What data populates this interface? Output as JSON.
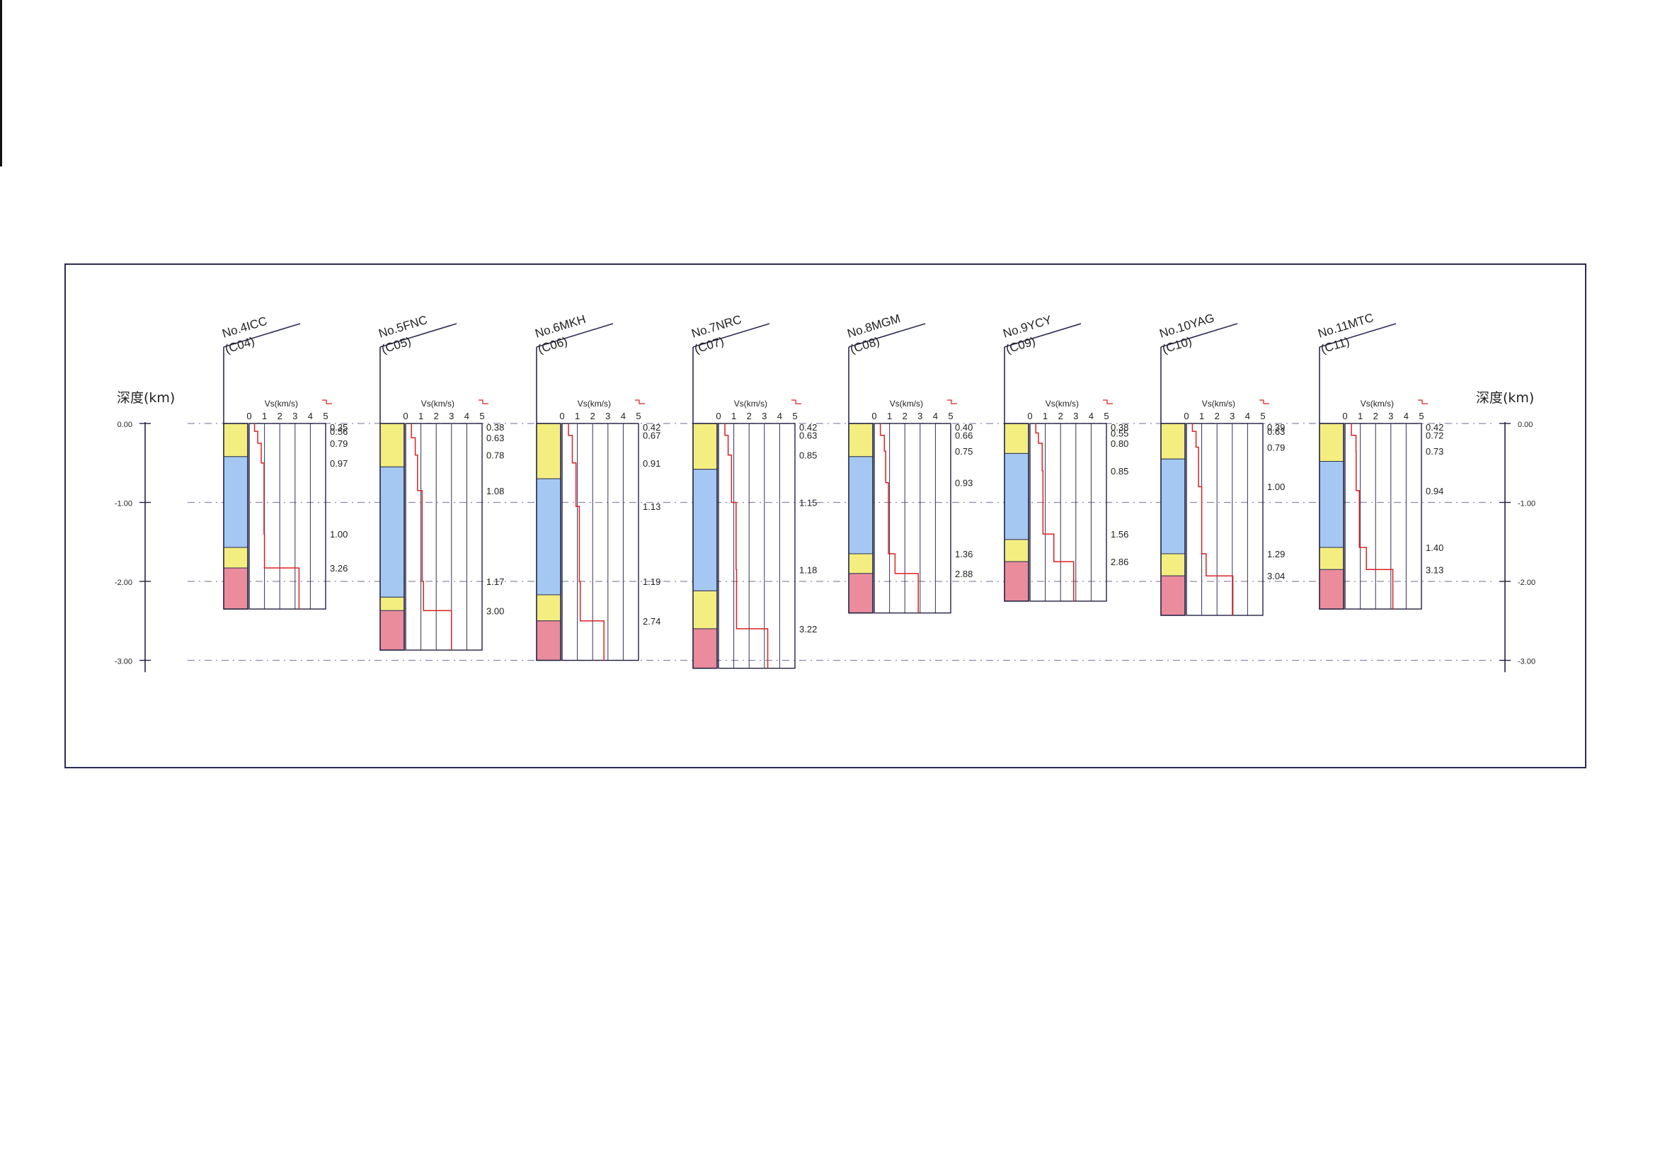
{
  "depth_axis": {
    "title": "深度(km)",
    "ticks": [
      {
        "value": 0,
        "label": "0.00"
      },
      {
        "value": -1,
        "label": "-1.00"
      },
      {
        "value": -2,
        "label": "-2.00"
      },
      {
        "value": -3,
        "label": "-3.00"
      }
    ]
  },
  "vs_axis": {
    "title": "Vs(km/s)",
    "ticks": [
      "0",
      "1",
      "2",
      "3",
      "4",
      "5"
    ],
    "max": 5
  },
  "colors": {
    "frame": "#2b2b55",
    "yellow": "#f4ee80",
    "blue": "#a4c8f2",
    "pink": "#ea8c9c",
    "vs_line": "#dd2222",
    "axis": "#222244",
    "ref_line": "#8a8aa8"
  },
  "boreholes": [
    {
      "name": "No.4ICC",
      "code": "(C04)",
      "layers": [
        {
          "to": 0.42,
          "color": "yellow"
        },
        {
          "to": 1.57,
          "color": "blue"
        },
        {
          "to": 1.83,
          "color": "yellow"
        },
        {
          "to": 2.35,
          "color": "pink"
        }
      ],
      "vs": [
        {
          "top": 0,
          "bottom": 0.1,
          "vs": 0.35,
          "label": "0.35"
        },
        {
          "top": 0.1,
          "bottom": 0.25,
          "vs": 0.56,
          "label": "0.56"
        },
        {
          "top": 0.25,
          "bottom": 0.5,
          "vs": 0.79,
          "label": "0.79"
        },
        {
          "top": 0.5,
          "bottom": 1.4,
          "vs": 0.97,
          "label": "0.97"
        },
        {
          "top": 1.4,
          "bottom": 1.83,
          "vs": 1.0,
          "label": "1.00"
        },
        {
          "top": 1.83,
          "bottom": 2.35,
          "vs": 3.26,
          "label": "3.26"
        }
      ]
    },
    {
      "name": "No.5FNC",
      "code": "(C05)",
      "layers": [
        {
          "to": 0.55,
          "color": "yellow"
        },
        {
          "to": 2.2,
          "color": "blue"
        },
        {
          "to": 2.37,
          "color": "yellow"
        },
        {
          "to": 2.87,
          "color": "pink"
        }
      ],
      "vs": [
        {
          "top": 0,
          "bottom": 0.18,
          "vs": 0.38,
          "label": "0.38"
        },
        {
          "top": 0.18,
          "bottom": 0.4,
          "vs": 0.63,
          "label": "0.63"
        },
        {
          "top": 0.4,
          "bottom": 0.85,
          "vs": 0.78,
          "label": "0.78"
        },
        {
          "top": 0.85,
          "bottom": 2.0,
          "vs": 1.08,
          "label": "1.08"
        },
        {
          "top": 2.0,
          "bottom": 2.37,
          "vs": 1.17,
          "label": "1.17"
        },
        {
          "top": 2.37,
          "bottom": 2.87,
          "vs": 3.0,
          "label": "3.00"
        }
      ]
    },
    {
      "name": "No.6MKH",
      "code": "(C06)",
      "layers": [
        {
          "to": 0.7,
          "color": "yellow"
        },
        {
          "to": 2.17,
          "color": "blue"
        },
        {
          "to": 2.5,
          "color": "yellow"
        },
        {
          "to": 3.0,
          "color": "pink"
        }
      ],
      "vs": [
        {
          "top": 0,
          "bottom": 0.15,
          "vs": 0.42,
          "label": "0.42"
        },
        {
          "top": 0.15,
          "bottom": 0.5,
          "vs": 0.67,
          "label": "0.67"
        },
        {
          "top": 0.5,
          "bottom": 1.05,
          "vs": 0.91,
          "label": "0.91"
        },
        {
          "top": 1.05,
          "bottom": 2.0,
          "vs": 1.13,
          "label": "1.13"
        },
        {
          "top": 2.0,
          "bottom": 2.5,
          "vs": 1.19,
          "label": "1.19"
        },
        {
          "top": 2.5,
          "bottom": 3.0,
          "vs": 2.74,
          "label": "2.74"
        }
      ]
    },
    {
      "name": "No.7NRC",
      "code": "(C07)",
      "layers": [
        {
          "to": 0.58,
          "color": "yellow"
        },
        {
          "to": 2.12,
          "color": "blue"
        },
        {
          "to": 2.6,
          "color": "yellow"
        },
        {
          "to": 3.1,
          "color": "pink"
        }
      ],
      "vs": [
        {
          "top": 0,
          "bottom": 0.15,
          "vs": 0.42,
          "label": "0.42"
        },
        {
          "top": 0.15,
          "bottom": 0.4,
          "vs": 0.63,
          "label": "0.63"
        },
        {
          "top": 0.4,
          "bottom": 1.0,
          "vs": 0.85,
          "label": "0.85"
        },
        {
          "top": 1.0,
          "bottom": 1.85,
          "vs": 1.15,
          "label": "1.15"
        },
        {
          "top": 1.85,
          "bottom": 2.6,
          "vs": 1.18,
          "label": "1.18"
        },
        {
          "top": 2.6,
          "bottom": 3.1,
          "vs": 3.22,
          "label": "3.22"
        }
      ]
    },
    {
      "name": "No.8MGM",
      "code": "(C08)",
      "layers": [
        {
          "to": 0.42,
          "color": "yellow"
        },
        {
          "to": 1.65,
          "color": "blue"
        },
        {
          "to": 1.9,
          "color": "yellow"
        },
        {
          "to": 2.4,
          "color": "pink"
        }
      ],
      "vs": [
        {
          "top": 0,
          "bottom": 0.15,
          "vs": 0.4,
          "label": "0.40"
        },
        {
          "top": 0.15,
          "bottom": 0.35,
          "vs": 0.66,
          "label": "0.66"
        },
        {
          "top": 0.35,
          "bottom": 0.75,
          "vs": 0.75,
          "label": "0.75"
        },
        {
          "top": 0.75,
          "bottom": 1.65,
          "vs": 0.93,
          "label": "0.93"
        },
        {
          "top": 1.65,
          "bottom": 1.9,
          "vs": 1.36,
          "label": "1.36"
        },
        {
          "top": 1.9,
          "bottom": 2.4,
          "vs": 2.88,
          "label": "2.88"
        }
      ]
    },
    {
      "name": "No.9YCY",
      "code": "(C09)",
      "layers": [
        {
          "to": 0.38,
          "color": "yellow"
        },
        {
          "to": 1.47,
          "color": "blue"
        },
        {
          "to": 1.75,
          "color": "yellow"
        },
        {
          "to": 2.25,
          "color": "pink"
        }
      ],
      "vs": [
        {
          "top": 0,
          "bottom": 0.12,
          "vs": 0.38,
          "label": "0.38"
        },
        {
          "top": 0.12,
          "bottom": 0.25,
          "vs": 0.55,
          "label": "0.55"
        },
        {
          "top": 0.25,
          "bottom": 0.6,
          "vs": 0.8,
          "label": "0.80"
        },
        {
          "top": 0.6,
          "bottom": 1.4,
          "vs": 0.85,
          "label": "0.85"
        },
        {
          "top": 1.4,
          "bottom": 1.75,
          "vs": 1.56,
          "label": "1.56"
        },
        {
          "top": 1.75,
          "bottom": 2.25,
          "vs": 2.86,
          "label": "2.86"
        }
      ]
    },
    {
      "name": "No.10YAG",
      "code": "(C10)",
      "layers": [
        {
          "to": 0.45,
          "color": "yellow"
        },
        {
          "to": 1.65,
          "color": "blue"
        },
        {
          "to": 1.93,
          "color": "yellow"
        },
        {
          "to": 2.43,
          "color": "pink"
        }
      ],
      "vs": [
        {
          "top": 0,
          "bottom": 0.1,
          "vs": 0.39,
          "label": "0.39"
        },
        {
          "top": 0.1,
          "bottom": 0.3,
          "vs": 0.63,
          "label": "0.63"
        },
        {
          "top": 0.3,
          "bottom": 0.8,
          "vs": 0.79,
          "label": "0.79"
        },
        {
          "top": 0.8,
          "bottom": 1.65,
          "vs": 1.0,
          "label": "1.00"
        },
        {
          "top": 1.65,
          "bottom": 1.93,
          "vs": 1.29,
          "label": "1.29"
        },
        {
          "top": 1.93,
          "bottom": 2.43,
          "vs": 3.04,
          "label": "3.04"
        }
      ]
    },
    {
      "name": "No.11MTC",
      "code": "(C11)",
      "layers": [
        {
          "to": 0.48,
          "color": "yellow"
        },
        {
          "to": 1.57,
          "color": "blue"
        },
        {
          "to": 1.85,
          "color": "yellow"
        },
        {
          "to": 2.35,
          "color": "pink"
        }
      ],
      "vs": [
        {
          "top": 0,
          "bottom": 0.15,
          "vs": 0.42,
          "label": "0.42"
        },
        {
          "top": 0.15,
          "bottom": 0.35,
          "vs": 0.72,
          "label": "0.72"
        },
        {
          "top": 0.35,
          "bottom": 0.85,
          "vs": 0.73,
          "label": "0.73"
        },
        {
          "top": 0.85,
          "bottom": 1.57,
          "vs": 0.94,
          "label": "0.94"
        },
        {
          "top": 1.57,
          "bottom": 1.85,
          "vs": 1.4,
          "label": "1.40"
        },
        {
          "top": 1.85,
          "bottom": 2.35,
          "vs": 3.13,
          "label": "3.13"
        }
      ]
    }
  ]
}
